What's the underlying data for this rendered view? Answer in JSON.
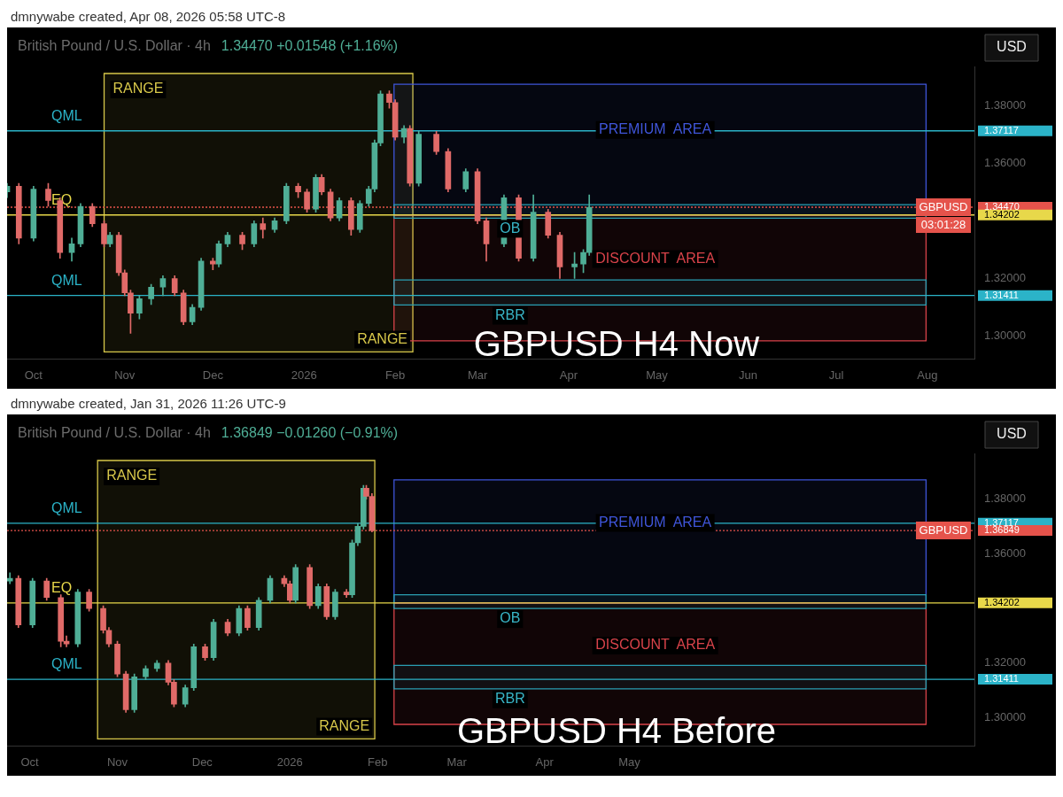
{
  "chart_data": [
    {
      "type": "candlestick",
      "title": "British Pound / U.S. Dollar · 4h",
      "subtitle": "1.34470 +0.01548 (+1.16%)",
      "ylabel": "USD",
      "x": [
        "2025-09-22",
        "2025-09-26",
        "2025-10-01",
        "2025-10-06",
        "2025-10-10",
        "2025-10-14",
        "2025-10-17",
        "2025-10-21",
        "2025-10-25",
        "2025-10-27",
        "2025-10-30",
        "2025-11-01",
        "2025-11-03",
        "2025-11-06",
        "2025-11-10",
        "2025-11-14",
        "2025-11-18",
        "2025-11-21",
        "2025-11-24",
        "2025-11-27",
        "2025-12-01",
        "2025-12-03",
        "2025-12-06",
        "2025-12-11",
        "2025-12-15",
        "2025-12-18",
        "2025-12-22",
        "2025-12-26",
        "2025-12-30",
        "2026-01-02",
        "2026-01-05",
        "2026-01-07",
        "2026-01-10",
        "2026-01-13",
        "2026-01-17",
        "2026-01-20",
        "2026-01-23",
        "2026-01-25",
        "2026-01-27",
        "2026-01-30",
        "2026-02-01",
        "2026-02-04",
        "2026-02-06",
        "2026-02-09",
        "2026-02-15",
        "2026-02-19",
        "2026-02-25",
        "2026-03-01",
        "2026-03-04",
        "2026-03-10",
        "2026-03-15",
        "2026-03-20",
        "2026-03-25",
        "2026-03-29",
        "2026-04-03",
        "2026-04-06",
        "2026-04-08"
      ],
      "ohlc": [
        [
          1.35,
          1.353,
          1.348,
          1.352
        ],
        [
          1.352,
          1.353,
          1.332,
          1.334
        ],
        [
          1.334,
          1.352,
          1.333,
          1.351
        ],
        [
          1.351,
          1.353,
          1.345,
          1.347
        ],
        [
          1.347,
          1.348,
          1.327,
          1.329
        ],
        [
          1.329,
          1.334,
          1.326,
          1.332
        ],
        [
          1.332,
          1.346,
          1.331,
          1.345
        ],
        [
          1.345,
          1.346,
          1.338,
          1.339
        ],
        [
          1.339,
          1.34,
          1.331,
          1.332
        ],
        [
          1.332,
          1.336,
          1.331,
          1.335
        ],
        [
          1.335,
          1.336,
          1.321,
          1.322
        ],
        [
          1.322,
          1.323,
          1.314,
          1.315
        ],
        [
          1.315,
          1.316,
          1.301,
          1.308
        ],
        [
          1.308,
          1.314,
          1.306,
          1.313
        ],
        [
          1.313,
          1.318,
          1.311,
          1.317
        ],
        [
          1.317,
          1.321,
          1.314,
          1.32
        ],
        [
          1.32,
          1.321,
          1.314,
          1.315
        ],
        [
          1.315,
          1.316,
          1.304,
          1.305
        ],
        [
          1.305,
          1.311,
          1.304,
          1.31
        ],
        [
          1.31,
          1.327,
          1.309,
          1.326
        ],
        [
          1.326,
          1.327,
          1.323,
          1.325
        ],
        [
          1.325,
          1.333,
          1.324,
          1.332
        ],
        [
          1.332,
          1.336,
          1.331,
          1.335
        ],
        [
          1.335,
          1.336,
          1.33,
          1.332
        ],
        [
          1.332,
          1.34,
          1.331,
          1.339
        ],
        [
          1.339,
          1.341,
          1.334,
          1.337
        ],
        [
          1.337,
          1.341,
          1.336,
          1.34
        ],
        [
          1.34,
          1.353,
          1.339,
          1.352
        ],
        [
          1.352,
          1.353,
          1.348,
          1.35
        ],
        [
          1.35,
          1.351,
          1.343,
          1.344
        ],
        [
          1.344,
          1.356,
          1.343,
          1.355
        ],
        [
          1.355,
          1.356,
          1.349,
          1.35
        ],
        [
          1.35,
          1.351,
          1.34,
          1.341
        ],
        [
          1.341,
          1.348,
          1.34,
          1.347
        ],
        [
          1.347,
          1.348,
          1.335,
          1.337
        ],
        [
          1.337,
          1.347,
          1.336,
          1.346
        ],
        [
          1.346,
          1.352,
          1.345,
          1.351
        ],
        [
          1.351,
          1.368,
          1.35,
          1.367
        ],
        [
          1.367,
          1.385,
          1.366,
          1.384
        ],
        [
          1.384,
          1.385,
          1.379,
          1.381
        ],
        [
          1.381,
          1.382,
          1.368,
          1.369
        ],
        [
          1.369,
          1.373,
          1.367,
          1.372
        ],
        [
          1.372,
          1.373,
          1.352,
          1.353
        ],
        [
          1.353,
          1.371,
          1.352,
          1.37
        ],
        [
          1.37,
          1.371,
          1.363,
          1.364
        ],
        [
          1.364,
          1.365,
          1.35,
          1.351
        ],
        [
          1.351,
          1.358,
          1.35,
          1.357
        ],
        [
          1.357,
          1.358,
          1.339,
          1.34
        ],
        [
          1.34,
          1.341,
          1.326,
          1.332
        ],
        [
          1.332,
          1.349,
          1.331,
          1.348
        ],
        [
          1.348,
          1.349,
          1.326,
          1.327
        ],
        [
          1.327,
          1.349,
          1.326,
          1.343
        ],
        [
          1.343,
          1.344,
          1.334,
          1.335
        ],
        [
          1.335,
          1.336,
          1.32,
          1.324
        ],
        [
          1.324,
          1.329,
          1.32,
          1.325
        ],
        [
          1.325,
          1.33,
          1.322,
          1.329
        ],
        [
          1.329,
          1.349,
          1.328,
          1.3447
        ]
      ],
      "xlim": [
        "2025-09-22",
        "2026-08-17"
      ],
      "xticks": [
        {
          "value": "2025-10-01",
          "label": "Oct"
        },
        {
          "value": "2025-11-01",
          "label": "Nov"
        },
        {
          "value": "2025-12-01",
          "label": "Dec"
        },
        {
          "value": "2026-01-01",
          "label": "2026"
        },
        {
          "value": "2026-02-01",
          "label": "Feb"
        },
        {
          "value": "2026-03-01",
          "label": "Mar"
        },
        {
          "value": "2026-04-01",
          "label": "Apr"
        },
        {
          "value": "2026-05-01",
          "label": "May"
        },
        {
          "value": "2026-06-01",
          "label": "Jun"
        },
        {
          "value": "2026-07-01",
          "label": "Jul"
        },
        {
          "value": "2026-08-01",
          "label": "Aug"
        }
      ],
      "ylim": [
        1.2921,
        1.3935
      ],
      "yticks": [
        {
          "value": 1.3,
          "label": "1.30000"
        },
        {
          "value": 1.31411,
          "label": "1.31411"
        },
        {
          "value": 1.32,
          "label": "1.32000"
        },
        {
          "value": 1.34202,
          "label": "1.34202"
        },
        {
          "value": 1.3447,
          "label": "1.34470"
        },
        {
          "value": 1.36,
          "label": "1.36000"
        },
        {
          "value": 1.37117,
          "label": "1.37117"
        },
        {
          "value": 1.38,
          "label": "1.38000"
        }
      ],
      "ref_lines": [
        {
          "axis": "y",
          "value": 1.37117,
          "label": "QML",
          "color": "#2bb3c8",
          "line_style": "solid"
        },
        {
          "axis": "y",
          "value": 1.34202,
          "label": "EQ",
          "color": "#e8d84a",
          "line_style": "solid"
        },
        {
          "axis": "y",
          "value": 1.31411,
          "label": "QML",
          "color": "#2bb3c8",
          "line_style": "solid"
        },
        {
          "axis": "y",
          "value": 1.3447,
          "label": "GBPUSD",
          "color": "#e5534b",
          "line_style": "dotted"
        }
      ],
      "bands": [
        {
          "axis": "x",
          "from": "2025-10-25",
          "to": "2026-02-07",
          "label": "RANGE",
          "color": "#d8c84a"
        },
        {
          "axis": "y",
          "from": 1.342,
          "to": 1.3873,
          "label": "PREMIUM  AREA",
          "color": "#3f55d9"
        },
        {
          "axis": "y",
          "from": 1.2984,
          "to": 1.342,
          "label": "DISCOUNT  AREA",
          "color": "#d9434a"
        },
        {
          "axis": "y",
          "from": 1.3409,
          "to": 1.3456,
          "label": "OB",
          "color": "#2a9fb3"
        },
        {
          "axis": "y",
          "from": 1.3108,
          "to": 1.3195,
          "label": "RBR",
          "color": "#2a9fb3"
        }
      ],
      "annotations": [
        "dmnywabe created, Apr 08, 2026 05:58 UTC-8",
        "GBPUSD H4 Now",
        "03:01:28"
      ],
      "grid": false
    },
    {
      "type": "candlestick",
      "title": "British Pound / U.S. Dollar · 4h",
      "subtitle": "1.36849 −0.01260 (−0.91%)",
      "ylabel": "USD",
      "x": [
        "2025-09-24",
        "2025-09-27",
        "2025-10-02",
        "2025-10-07",
        "2025-10-12",
        "2025-10-14",
        "2025-10-18",
        "2025-10-22",
        "2025-10-27",
        "2025-10-29",
        "2025-11-01",
        "2025-11-04",
        "2025-11-07",
        "2025-11-11",
        "2025-11-15",
        "2025-11-19",
        "2025-11-21",
        "2025-11-25",
        "2025-11-28",
        "2025-12-02",
        "2025-12-05",
        "2025-12-10",
        "2025-12-14",
        "2025-12-17",
        "2025-12-21",
        "2025-12-25",
        "2025-12-30",
        "2026-01-01",
        "2026-01-03",
        "2026-01-08",
        "2026-01-11",
        "2026-01-14",
        "2026-01-17",
        "2026-01-21",
        "2026-01-23",
        "2026-01-25",
        "2026-01-27",
        "2026-01-28",
        "2026-01-30"
      ],
      "ohlc": [
        [
          1.35,
          1.353,
          1.349,
          1.351
        ],
        [
          1.351,
          1.352,
          1.333,
          1.334
        ],
        [
          1.334,
          1.351,
          1.333,
          1.35
        ],
        [
          1.35,
          1.351,
          1.343,
          1.344
        ],
        [
          1.344,
          1.345,
          1.326,
          1.328
        ],
        [
          1.328,
          1.33,
          1.326,
          1.327
        ],
        [
          1.327,
          1.347,
          1.326,
          1.346
        ],
        [
          1.346,
          1.347,
          1.339,
          1.34
        ],
        [
          1.34,
          1.341,
          1.331,
          1.332
        ],
        [
          1.332,
          1.333,
          1.326,
          1.327
        ],
        [
          1.327,
          1.328,
          1.315,
          1.316
        ],
        [
          1.316,
          1.317,
          1.302,
          1.303
        ],
        [
          1.303,
          1.316,
          1.302,
          1.315
        ],
        [
          1.315,
          1.319,
          1.314,
          1.318
        ],
        [
          1.318,
          1.321,
          1.317,
          1.32
        ],
        [
          1.32,
          1.321,
          1.312,
          1.313
        ],
        [
          1.313,
          1.314,
          1.304,
          1.305
        ],
        [
          1.305,
          1.312,
          1.304,
          1.311
        ],
        [
          1.311,
          1.327,
          1.31,
          1.326
        ],
        [
          1.326,
          1.327,
          1.321,
          1.322
        ],
        [
          1.322,
          1.336,
          1.321,
          1.335
        ],
        [
          1.335,
          1.336,
          1.33,
          1.331
        ],
        [
          1.331,
          1.341,
          1.33,
          1.34
        ],
        [
          1.34,
          1.341,
          1.332,
          1.333
        ],
        [
          1.333,
          1.344,
          1.332,
          1.343
        ],
        [
          1.343,
          1.352,
          1.342,
          1.351
        ],
        [
          1.351,
          1.352,
          1.348,
          1.349
        ],
        [
          1.349,
          1.35,
          1.342,
          1.343
        ],
        [
          1.343,
          1.356,
          1.342,
          1.355
        ],
        [
          1.355,
          1.356,
          1.34,
          1.341
        ],
        [
          1.341,
          1.349,
          1.34,
          1.348
        ],
        [
          1.348,
          1.349,
          1.336,
          1.337
        ],
        [
          1.337,
          1.347,
          1.336,
          1.346
        ],
        [
          1.346,
          1.347,
          1.344,
          1.345
        ],
        [
          1.345,
          1.365,
          1.344,
          1.364
        ],
        [
          1.364,
          1.371,
          1.363,
          1.37
        ],
        [
          1.37,
          1.385,
          1.369,
          1.384
        ],
        [
          1.384,
          1.385,
          1.38,
          1.381
        ],
        [
          1.381,
          1.382,
          1.368,
          1.36849
        ]
      ],
      "xlim": [
        "2025-09-23",
        "2026-08-31"
      ],
      "xticks": [
        {
          "value": "2025-10-01",
          "label": "Oct"
        },
        {
          "value": "2025-11-01",
          "label": "Nov"
        },
        {
          "value": "2025-12-01",
          "label": "Dec"
        },
        {
          "value": "2026-01-01",
          "label": "2026"
        },
        {
          "value": "2026-02-01",
          "label": "Feb"
        },
        {
          "value": "2026-03-01",
          "label": "Mar"
        },
        {
          "value": "2026-04-01",
          "label": "Apr"
        },
        {
          "value": "2026-05-01",
          "label": "May"
        }
      ],
      "ylim": [
        1.2897,
        1.3967
      ],
      "yticks": [
        {
          "value": 1.3,
          "label": "1.30000"
        },
        {
          "value": 1.31411,
          "label": "1.31411"
        },
        {
          "value": 1.32,
          "label": "1.32000"
        },
        {
          "value": 1.34202,
          "label": "1.34202"
        },
        {
          "value": 1.36,
          "label": "1.36000"
        },
        {
          "value": 1.36849,
          "label": "1.36849"
        },
        {
          "value": 1.37117,
          "label": "1.37117"
        },
        {
          "value": 1.38,
          "label": "1.38000"
        }
      ],
      "ref_lines": [
        {
          "axis": "y",
          "value": 1.37117,
          "label": "QML",
          "color": "#2bb3c8",
          "line_style": "solid"
        },
        {
          "axis": "y",
          "value": 1.34202,
          "label": "EQ",
          "color": "#e8d84a",
          "line_style": "solid"
        },
        {
          "axis": "y",
          "value": 1.31411,
          "label": "QML",
          "color": "#2bb3c8",
          "line_style": "solid"
        },
        {
          "axis": "y",
          "value": 1.36849,
          "label": "GBPUSD",
          "color": "#e5534b",
          "line_style": "dotted"
        }
      ],
      "bands": [
        {
          "axis": "x",
          "from": "2025-10-25",
          "to": "2026-01-31",
          "label": "RANGE",
          "color": "#d8c84a"
        },
        {
          "axis": "y",
          "from": 1.342,
          "to": 1.387,
          "label": "PREMIUM  AREA",
          "color": "#3f55d9"
        },
        {
          "axis": "y",
          "from": 1.2976,
          "to": 1.342,
          "label": "DISCOUNT  AREA",
          "color": "#d9434a"
        },
        {
          "axis": "y",
          "from": 1.34,
          "to": 1.345,
          "label": "OB",
          "color": "#2a9fb3"
        },
        {
          "axis": "y",
          "from": 1.3106,
          "to": 1.3192,
          "label": "RBR",
          "color": "#2a9fb3"
        }
      ],
      "annotations": [
        "dmnywabe created, Jan 31, 2026 11:26 UTC-9",
        "GBPUSD H4 Before"
      ],
      "grid": false
    }
  ]
}
